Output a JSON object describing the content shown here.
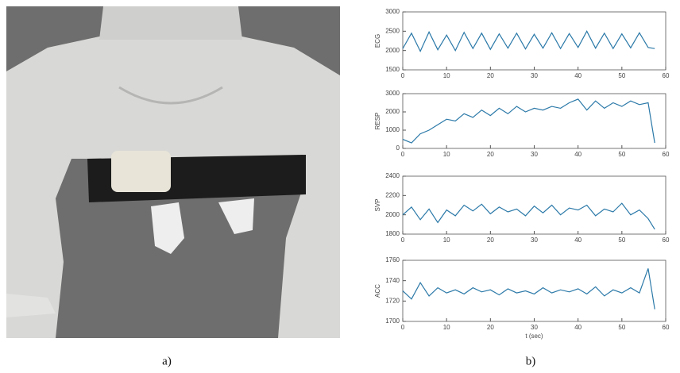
{
  "captions": [
    "a)",
    "b)"
  ],
  "chart_data": [
    {
      "type": "line",
      "ylabel": "ECG",
      "color": "#2b79a8",
      "xlim": [
        0,
        60
      ],
      "xticks": [
        0,
        10,
        20,
        30,
        40,
        50,
        60
      ],
      "ylim": [
        1500,
        3000
      ],
      "yticks": [
        1500,
        2000,
        2500,
        3000
      ],
      "x": [
        0,
        2,
        4,
        6,
        8,
        10,
        12,
        14,
        16,
        18,
        20,
        22,
        24,
        26,
        28,
        30,
        32,
        34,
        36,
        38,
        40,
        42,
        44,
        46,
        48,
        50,
        52,
        54,
        56,
        57.5
      ],
      "values": [
        2050,
        2450,
        1980,
        2480,
        2020,
        2400,
        2000,
        2470,
        2050,
        2450,
        2030,
        2430,
        2060,
        2450,
        2040,
        2420,
        2060,
        2460,
        2050,
        2440,
        2080,
        2500,
        2060,
        2450,
        2050,
        2430,
        2070,
        2460,
        2080,
        2050
      ]
    },
    {
      "type": "line",
      "ylabel": "RESP",
      "color": "#2b79a8",
      "xlim": [
        0,
        60
      ],
      "xticks": [
        0,
        10,
        20,
        30,
        40,
        50,
        60
      ],
      "ylim": [
        0,
        3000
      ],
      "yticks": [
        0,
        1000,
        2000,
        3000
      ],
      "x": [
        0,
        2,
        4,
        6,
        8,
        10,
        12,
        14,
        16,
        18,
        20,
        22,
        24,
        26,
        28,
        30,
        32,
        34,
        36,
        38,
        40,
        42,
        44,
        46,
        48,
        50,
        52,
        54,
        56,
        57.5
      ],
      "values": [
        500,
        300,
        800,
        1000,
        1300,
        1600,
        1500,
        1900,
        1700,
        2100,
        1800,
        2200,
        1900,
        2300,
        2000,
        2200,
        2100,
        2300,
        2200,
        2500,
        2700,
        2100,
        2600,
        2200,
        2500,
        2300,
        2600,
        2400,
        2500,
        300
      ]
    },
    {
      "type": "line",
      "ylabel": "SVP",
      "color": "#2b79a8",
      "xlim": [
        0,
        60
      ],
      "xticks": [
        0,
        10,
        20,
        30,
        40,
        50,
        60
      ],
      "ylim": [
        1800,
        2400
      ],
      "yticks": [
        1800,
        2000,
        2200,
        2400
      ],
      "x": [
        0,
        2,
        4,
        6,
        8,
        10,
        12,
        14,
        16,
        18,
        20,
        22,
        24,
        26,
        28,
        30,
        32,
        34,
        36,
        38,
        40,
        42,
        44,
        46,
        48,
        50,
        52,
        54,
        56,
        57.5
      ],
      "values": [
        2000,
        2080,
        1950,
        2060,
        1920,
        2050,
        1990,
        2100,
        2040,
        2110,
        2010,
        2080,
        2030,
        2060,
        1990,
        2090,
        2020,
        2100,
        2000,
        2070,
        2050,
        2100,
        1990,
        2060,
        2030,
        2120,
        2000,
        2050,
        1960,
        1850
      ]
    },
    {
      "type": "line",
      "ylabel": "ACC",
      "xlabel": "t (sec)",
      "color": "#2b79a8",
      "xlim": [
        0,
        60
      ],
      "xticks": [
        0,
        10,
        20,
        30,
        40,
        50,
        60
      ],
      "ylim": [
        1700,
        1760
      ],
      "yticks": [
        1700,
        1720,
        1740,
        1760
      ],
      "x": [
        0,
        2,
        4,
        6,
        8,
        10,
        12,
        14,
        16,
        18,
        20,
        22,
        24,
        26,
        28,
        30,
        32,
        34,
        36,
        38,
        40,
        42,
        44,
        46,
        48,
        50,
        52,
        54,
        56,
        57.5
      ],
      "values": [
        1730,
        1722,
        1738,
        1725,
        1733,
        1728,
        1731,
        1727,
        1733,
        1729,
        1731,
        1726,
        1732,
        1728,
        1730,
        1727,
        1733,
        1728,
        1731,
        1729,
        1732,
        1727,
        1734,
        1725,
        1731,
        1728,
        1733,
        1728,
        1752,
        1712
      ]
    }
  ]
}
